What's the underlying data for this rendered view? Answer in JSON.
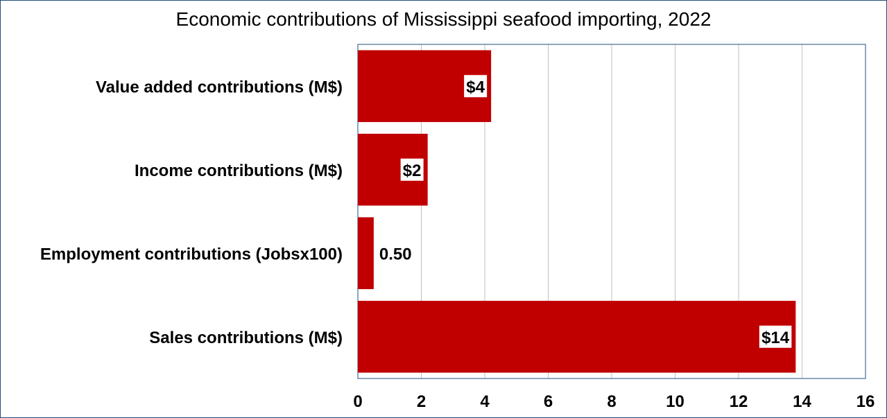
{
  "chart_data": {
    "type": "bar",
    "orientation": "horizontal",
    "title": "Economic contributions of Mississippi seafood importing, 2022",
    "xlabel": "",
    "ylabel": "",
    "categories": [
      "Value added contributions (M$)",
      "Income contributions (M$)",
      "Employment contributions (Jobsx100)",
      "Sales contributions (M$)"
    ],
    "values": [
      4.2,
      2.2,
      0.5,
      13.8
    ],
    "data_labels": [
      "$4",
      "$2",
      "0.50",
      "$14"
    ],
    "xlim": [
      0,
      16
    ],
    "xticks": [
      0,
      2,
      4,
      6,
      8,
      10,
      12,
      14,
      16
    ],
    "xtick_labels": [
      "0",
      "2",
      "4",
      "6",
      "8",
      "10",
      "12",
      "14",
      "16"
    ],
    "grid": "vertical",
    "legend": "none",
    "bar_color": "#c00000",
    "grid_color": "#c0c0c0",
    "frame_color": "#1f4e79"
  }
}
